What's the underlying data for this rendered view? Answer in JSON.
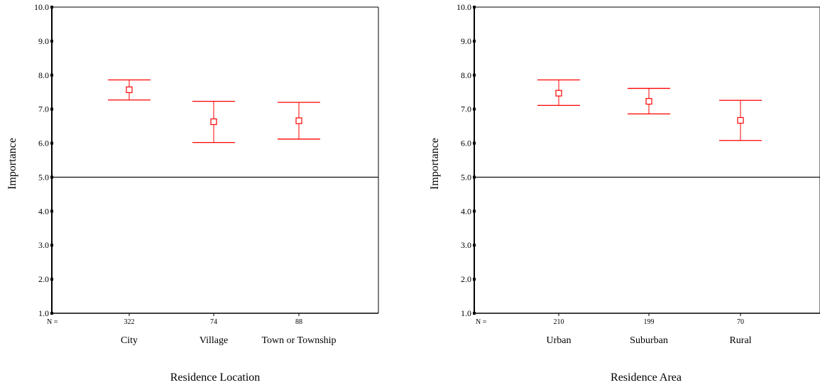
{
  "chart_data": [
    {
      "type": "errorbar",
      "title": "",
      "xlabel": "Residence Location",
      "ylabel": "Importance",
      "ylim": [
        1.0,
        10.0
      ],
      "yticks": [
        "1.0",
        "2.0",
        "3.0",
        "4.0",
        "5.0",
        "6.0",
        "7.0",
        "8.0",
        "9.0",
        "10.0"
      ],
      "reference_line": 5.0,
      "n_prefix": "N =",
      "categories": [
        "City",
        "Village",
        "Town or Township"
      ],
      "n_values": [
        "322",
        "74",
        "88"
      ],
      "means": [
        7.57,
        6.63,
        6.66
      ],
      "lower": [
        7.27,
        6.02,
        6.12
      ],
      "upper": [
        7.86,
        7.23,
        7.2
      ],
      "color": "#ff0000"
    },
    {
      "type": "errorbar",
      "title": "",
      "xlabel": "Residence Area",
      "ylabel": "Importance",
      "ylim": [
        1.0,
        10.0
      ],
      "yticks": [
        "1.0",
        "2.0",
        "3.0",
        "4.0",
        "5.0",
        "6.0",
        "7.0",
        "8.0",
        "9.0",
        "10.0"
      ],
      "reference_line": 5.0,
      "n_prefix": "N =",
      "categories": [
        "Urban",
        "Suburban",
        "Rural"
      ],
      "n_values": [
        "210",
        "199",
        "70"
      ],
      "means": [
        7.47,
        7.23,
        6.67
      ],
      "lower": [
        7.11,
        6.86,
        6.08
      ],
      "upper": [
        7.86,
        7.61,
        7.26
      ],
      "color": "#ff0000"
    }
  ]
}
